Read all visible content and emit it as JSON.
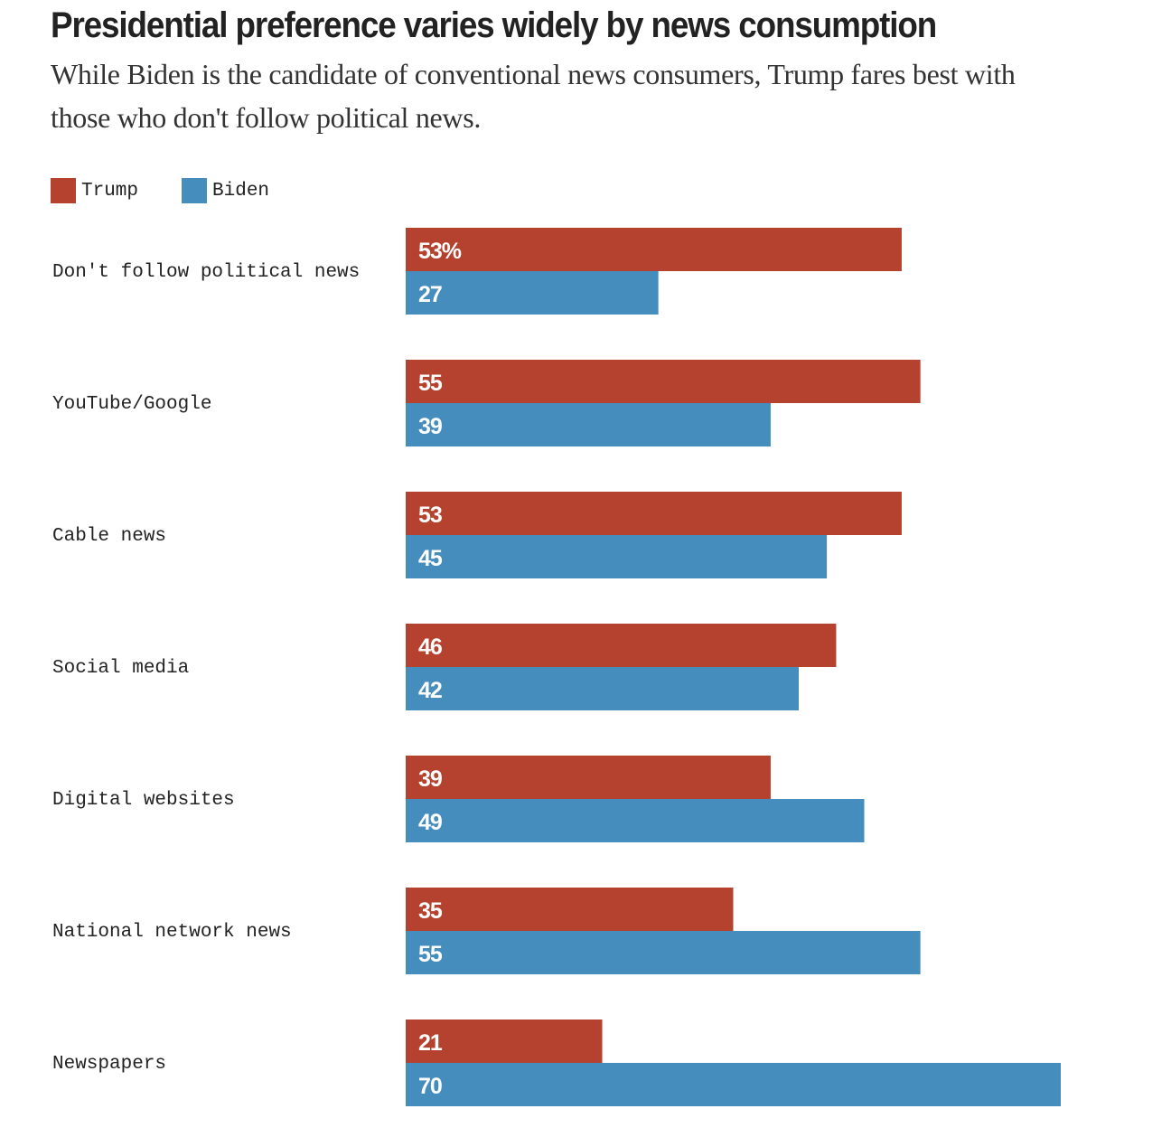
{
  "chart_data": {
    "type": "bar",
    "orientation": "horizontal",
    "title": "Presidential preference varies widely by news consumption",
    "subtitle": "While Biden is the candidate of conventional news consumers, Trump fares best with those who don't follow political news.",
    "categories": [
      "Don't follow political news",
      "YouTube/Google",
      "Cable news",
      "Social media",
      "Digital websites",
      "National network news",
      "Newspapers"
    ],
    "series": [
      {
        "name": "Trump",
        "color": "#b5412f",
        "values": [
          53,
          55,
          53,
          46,
          39,
          35,
          21
        ],
        "labels": [
          "53%",
          "55",
          "53",
          "46",
          "39",
          "35",
          "21"
        ]
      },
      {
        "name": "Biden",
        "color": "#458dbd",
        "values": [
          27,
          39,
          45,
          42,
          49,
          55,
          70
        ],
        "labels": [
          "27",
          "39",
          "45",
          "42",
          "49",
          "55",
          "70"
        ]
      }
    ],
    "xlim": [
      0,
      70
    ],
    "legend": "top-left",
    "grid": false
  }
}
